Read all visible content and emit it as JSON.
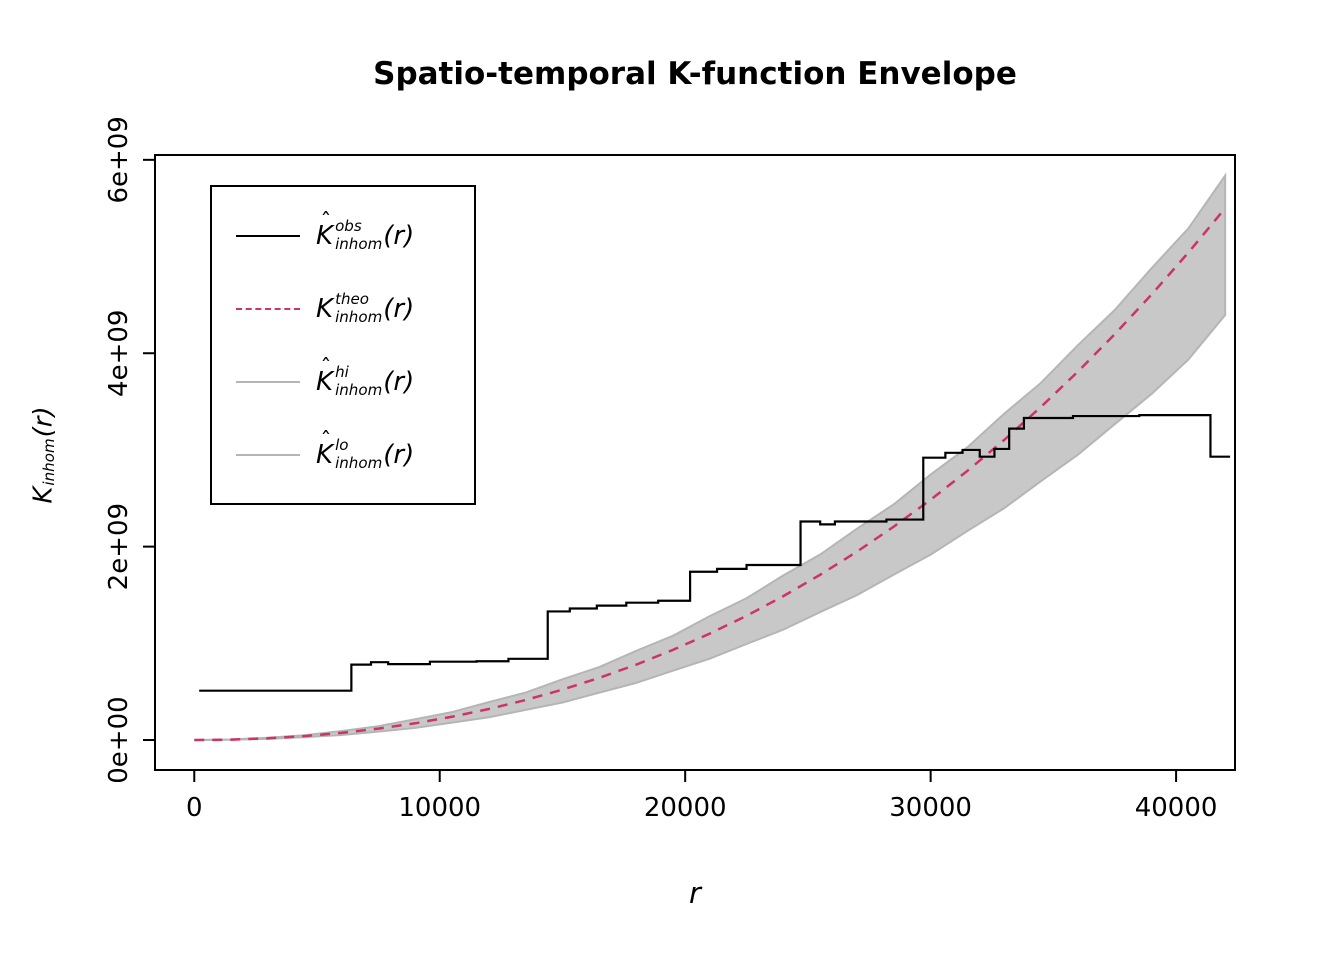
{
  "chart_data": {
    "type": "line",
    "title": "Spatio-temporal K-function Envelope",
    "xlabel": "r",
    "ylabel": "K[inhom](r)",
    "xlim": [
      -1600,
      42400
    ],
    "ylim_e9": [
      -0.31,
      6.05
    ],
    "value_unit": "1e9",
    "x_ticks": [
      0,
      10000,
      20000,
      30000,
      40000
    ],
    "x_tick_labels": [
      "0",
      "10000",
      "20000",
      "30000",
      "40000"
    ],
    "y_ticks_e9": [
      0,
      2,
      4,
      6
    ],
    "y_tick_labels": [
      "0e+00",
      "2e+09",
      "4e+09",
      "6e+09"
    ],
    "band_r": [
      0,
      1500,
      3000,
      4500,
      6000,
      7500,
      9000,
      10500,
      12000,
      13500,
      15000,
      16500,
      18000,
      19500,
      21000,
      22500,
      24000,
      25500,
      27000,
      28500,
      30000,
      31500,
      33000,
      34500,
      36000,
      37500,
      39000,
      40500,
      42000
    ],
    "theo_e9": [
      0,
      0.004,
      0.018,
      0.041,
      0.074,
      0.118,
      0.173,
      0.241,
      0.321,
      0.414,
      0.521,
      0.643,
      0.779,
      0.932,
      1.1,
      1.285,
      1.488,
      1.709,
      1.948,
      2.207,
      2.485,
      2.784,
      3.104,
      3.446,
      3.81,
      4.197,
      4.607,
      5.041,
      5.5
    ],
    "band_hi_e9": [
      0,
      0.006,
      0.024,
      0.05,
      0.094,
      0.143,
      0.215,
      0.289,
      0.392,
      0.491,
      0.628,
      0.755,
      0.922,
      1.078,
      1.281,
      1.466,
      1.703,
      1.918,
      2.186,
      2.438,
      2.745,
      3.028,
      3.375,
      3.695,
      4.083,
      4.447,
      4.879,
      5.291,
      5.838
    ],
    "band_lo_e9": [
      0,
      0.003,
      0.012,
      0.03,
      0.052,
      0.087,
      0.125,
      0.18,
      0.235,
      0.312,
      0.388,
      0.49,
      0.59,
      0.717,
      0.841,
      0.993,
      1.142,
      1.323,
      1.499,
      1.71,
      1.917,
      2.162,
      2.398,
      2.678,
      2.951,
      3.266,
      3.579,
      3.934,
      4.395
    ],
    "obs_steps": [
      [
        200,
        0.51
      ],
      [
        6400,
        0.78
      ],
      [
        7200,
        0.805
      ],
      [
        7900,
        0.785
      ],
      [
        9600,
        0.81
      ],
      [
        11500,
        0.815
      ],
      [
        12800,
        0.84
      ],
      [
        14400,
        1.33
      ],
      [
        15300,
        1.36
      ],
      [
        16400,
        1.39
      ],
      [
        17600,
        1.42
      ],
      [
        18900,
        1.44
      ],
      [
        20200,
        1.74
      ],
      [
        21300,
        1.77
      ],
      [
        22500,
        1.81
      ],
      [
        24700,
        2.26
      ],
      [
        25500,
        2.23
      ],
      [
        26100,
        2.26
      ],
      [
        28200,
        2.28
      ],
      [
        29700,
        2.92
      ],
      [
        30600,
        2.97
      ],
      [
        31300,
        3.0
      ],
      [
        32000,
        2.93
      ],
      [
        32600,
        3.01
      ],
      [
        33200,
        3.22
      ],
      [
        33800,
        3.33
      ],
      [
        35800,
        3.35
      ],
      [
        38500,
        3.36
      ],
      [
        41400,
        2.93
      ],
      [
        42200,
        2.93
      ]
    ],
    "colors": {
      "obs": "#000000",
      "theo": "#cc3366",
      "band": "#c8c8c8",
      "hilo": "#b5b5b5",
      "axis": "#000000"
    }
  },
  "ylabel_math": {
    "hat": false,
    "base": "K",
    "sub": "inhom",
    "arg": "(r)"
  },
  "legend": {
    "entries": [
      {
        "hat": true,
        "base": "K",
        "sup": "obs",
        "sub": "inhom",
        "arg": "(r)",
        "line": "obs",
        "style": "solid"
      },
      {
        "hat": false,
        "base": "K",
        "sup": "theo",
        "sub": "inhom",
        "arg": "(r)",
        "line": "theo",
        "style": "dashed"
      },
      {
        "hat": true,
        "base": "K",
        "sup": "hi",
        "sub": "inhom",
        "arg": "(r)",
        "line": "hilo",
        "style": "solid"
      },
      {
        "hat": true,
        "base": "K",
        "sup": "lo",
        "sub": "inhom",
        "arg": "(r)",
        "line": "hilo",
        "style": "solid"
      }
    ]
  }
}
